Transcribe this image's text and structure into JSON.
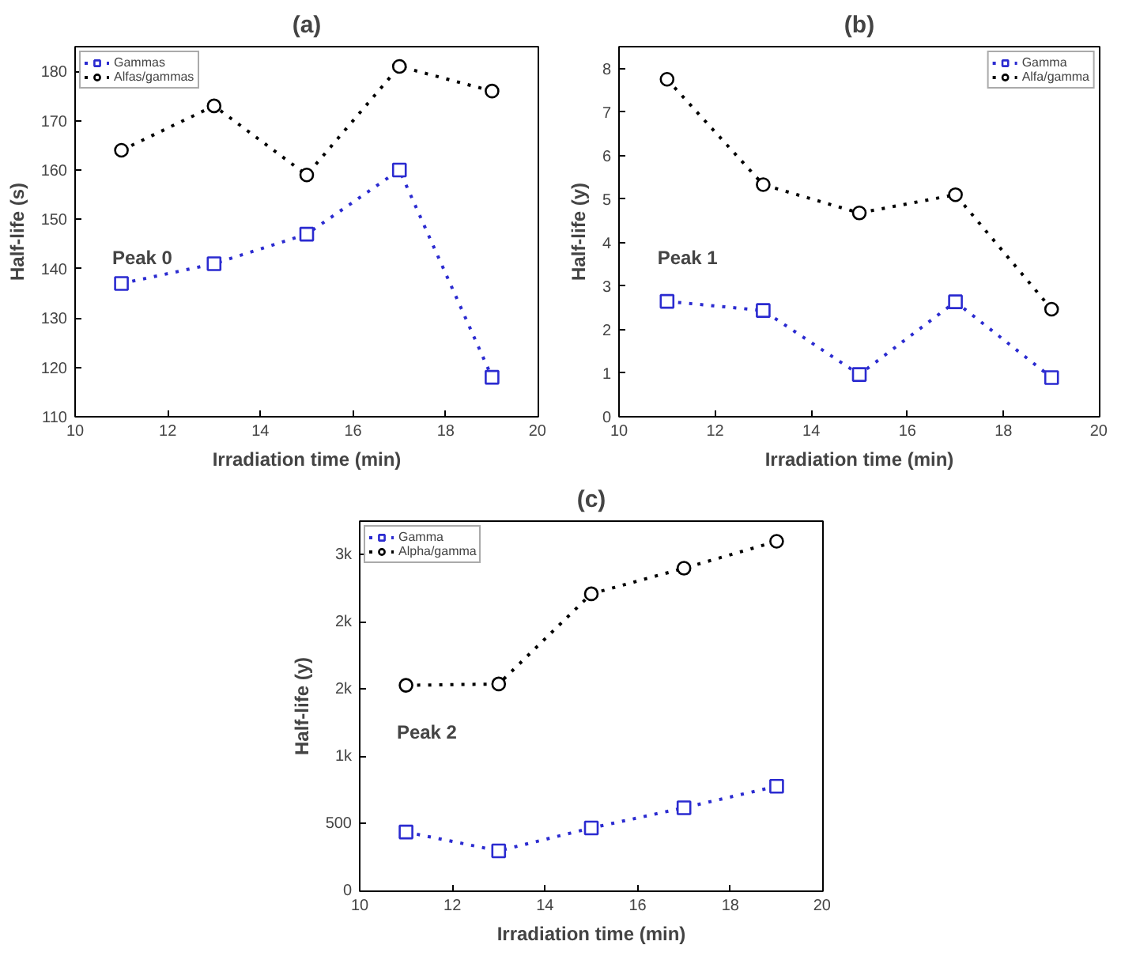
{
  "chart_data": [
    {
      "type": "line",
      "title": "(a)",
      "xlabel": "Irradiation time (min)",
      "ylabel": "Half-life (s)",
      "x": [
        11,
        13,
        15,
        17,
        19
      ],
      "xlim": [
        10,
        20
      ],
      "xticks": [
        10,
        12,
        14,
        16,
        18,
        20
      ],
      "ylim": [
        110,
        185
      ],
      "yticks": [
        110,
        120,
        130,
        140,
        150,
        160,
        170,
        180
      ],
      "legend": "top left",
      "line_style": "dotted",
      "grid": false,
      "annotations": [
        "Peak 0"
      ],
      "series": [
        {
          "name": "Gammas",
          "color": "#2b2bd0",
          "marker": "square",
          "values": [
            137,
            141,
            147,
            160,
            118
          ]
        },
        {
          "name": "Alfas/gammas",
          "color": "#000000",
          "marker": "circle",
          "values": [
            164,
            173,
            159,
            181,
            176
          ]
        }
      ]
    },
    {
      "type": "line",
      "title": "(b)",
      "xlabel": "Irradiation time (min)",
      "ylabel": "Half-life (y)",
      "x": [
        11,
        13,
        15,
        17,
        19
      ],
      "xlim": [
        10,
        20
      ],
      "xticks": [
        10,
        12,
        14,
        16,
        18,
        20
      ],
      "ylim": [
        0,
        8.5
      ],
      "yticks": [
        0,
        1,
        2,
        3,
        4,
        5,
        6,
        7,
        8
      ],
      "legend": "top right",
      "line_style": "dotted",
      "grid": false,
      "annotations": [
        "Peak 1"
      ],
      "series": [
        {
          "name": "Gamma",
          "color": "#2b2bd0",
          "marker": "square",
          "values": [
            2.65,
            2.44,
            0.97,
            2.64,
            0.9
          ]
        },
        {
          "name": "Alfa/gamma",
          "color": "#000000",
          "marker": "circle",
          "values": [
            7.75,
            5.33,
            4.68,
            5.1,
            2.47
          ]
        }
      ]
    },
    {
      "type": "line",
      "title": "(c)",
      "xlabel": "Irradiation time (min)",
      "ylabel": "Half-life (y)",
      "x": [
        11,
        13,
        15,
        17,
        19
      ],
      "xlim": [
        10,
        20
      ],
      "xticks": [
        10,
        12,
        14,
        16,
        18,
        20
      ],
      "ylim": [
        0,
        2750
      ],
      "yticks": [
        0,
        500,
        {
          "value": 1000,
          "label": "1k"
        },
        {
          "value": 1500,
          "label": "2k"
        },
        {
          "value": 2000,
          "label": "2k"
        },
        {
          "value": 2500,
          "label": "3k"
        }
      ],
      "legend": "top left",
      "line_style": "dotted",
      "grid": false,
      "annotations": [
        "Peak 2"
      ],
      "series": [
        {
          "name": "Gamma",
          "color": "#2b2bd0",
          "marker": "square",
          "values": [
            440,
            300,
            470,
            620,
            780
          ]
        },
        {
          "name": "Alpha/gamma",
          "color": "#000000",
          "marker": "circle",
          "values": [
            1530,
            1540,
            2210,
            2400,
            2600
          ]
        }
      ]
    }
  ]
}
